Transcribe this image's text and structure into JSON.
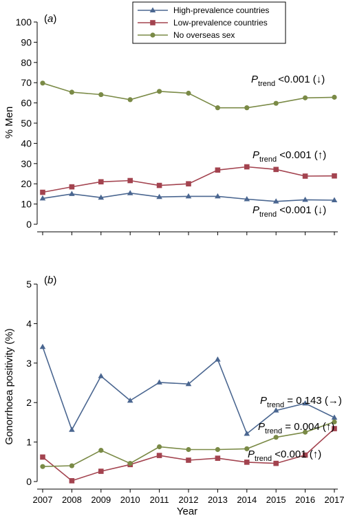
{
  "chart_data": {
    "type": "line",
    "xlabel": "Year",
    "x": [
      "2007",
      "2008",
      "2009",
      "2010",
      "2011",
      "2012",
      "2013",
      "2014",
      "2015",
      "2016",
      "2017"
    ],
    "legend": {
      "position": "top",
      "entries": [
        {
          "name": "High-prevalence countries",
          "color": "#4a6690",
          "marker": "triangle"
        },
        {
          "name": "Low-prevalence countries",
          "color": "#a3434f",
          "marker": "square"
        },
        {
          "name": "No overseas sex",
          "color": "#7a8a46",
          "marker": "circle"
        }
      ]
    },
    "panels": [
      {
        "label": "(a)",
        "ylabel": "% Men",
        "ylim": [
          0,
          100
        ],
        "yticks": [
          "0",
          "10",
          "20",
          "30",
          "40",
          "50",
          "60",
          "70",
          "80",
          "90",
          "100"
        ],
        "series": [
          {
            "name": "High-prevalence countries",
            "values": [
              12.8,
              15.0,
              13.2,
              15.4,
              13.5,
              13.8,
              13.8,
              12.4,
              11.3,
              12.1,
              11.9
            ]
          },
          {
            "name": "Low-prevalence countries",
            "values": [
              15.8,
              18.5,
              21.0,
              21.6,
              19.2,
              20.0,
              26.8,
              28.4,
              27.1,
              23.8,
              23.9
            ]
          },
          {
            "name": "No overseas sex",
            "values": [
              69.8,
              65.3,
              64.1,
              61.6,
              65.7,
              64.8,
              57.6,
              57.6,
              59.8,
              62.5,
              62.8
            ]
          }
        ],
        "annotations": [
          {
            "base": "P",
            "sub": "trend",
            "text": " <0.001 (↓)"
          },
          {
            "base": "P",
            "sub": "trend",
            "text": " <0.001 (↑)"
          },
          {
            "base": "P",
            "sub": "trend",
            "text": " <0.001 (↓)"
          }
        ]
      },
      {
        "label": "(b)",
        "ylabel": "Gonorrhoea positivity (%)",
        "ylim": [
          0,
          5
        ],
        "yticks": [
          "0",
          "1",
          "2",
          "3",
          "4",
          "5"
        ],
        "series": [
          {
            "name": "High-prevalence countries",
            "values": [
              3.41,
              1.31,
              2.67,
              2.05,
              2.51,
              2.47,
              3.09,
              1.21,
              1.8,
              1.98,
              1.62
            ]
          },
          {
            "name": "Low-prevalence countries",
            "values": [
              0.62,
              0.02,
              0.26,
              0.43,
              0.66,
              0.54,
              0.59,
              0.49,
              0.46,
              0.67,
              1.34
            ]
          },
          {
            "name": "No overseas sex",
            "values": [
              0.38,
              0.4,
              0.79,
              0.46,
              0.88,
              0.81,
              0.81,
              0.83,
              1.12,
              1.25,
              1.51
            ]
          }
        ],
        "annotations": [
          {
            "base": "P",
            "sub": "trend",
            "text": " = 0.143 (→)"
          },
          {
            "base": "P",
            "sub": "trend",
            "text": " = 0.004 (↑)"
          },
          {
            "base": "P",
            "sub": "trend",
            "text": " <0.001 (↑)"
          }
        ]
      }
    ]
  }
}
